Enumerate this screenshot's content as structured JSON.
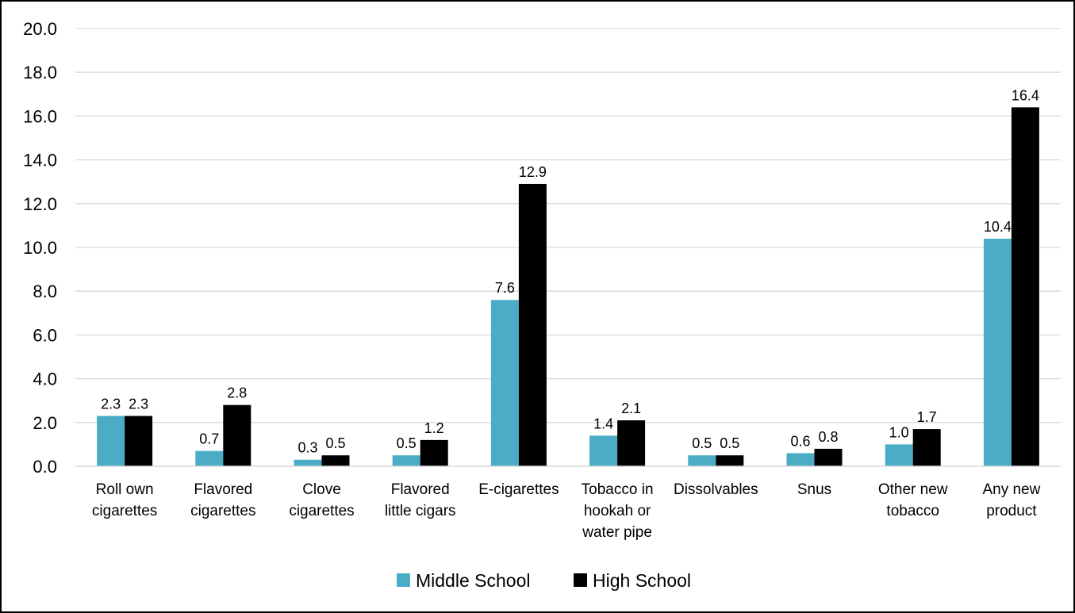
{
  "chart_data": {
    "type": "bar",
    "title": "",
    "xlabel": "",
    "ylabel": "",
    "ylim": [
      0,
      20
    ],
    "ytick_step": 2,
    "ytick_labels": [
      "0.0",
      "2.0",
      "4.0",
      "6.0",
      "8.0",
      "10.0",
      "12.0",
      "14.0",
      "16.0",
      "18.0",
      "20.0"
    ],
    "grid": true,
    "legend_position": "bottom",
    "categories": [
      [
        "Roll own",
        "cigarettes"
      ],
      [
        "Flavored",
        "cigarettes"
      ],
      [
        "Clove",
        "cigarettes"
      ],
      [
        "Flavored",
        "little cigars"
      ],
      [
        "E-cigarettes"
      ],
      [
        "Tobacco in",
        "hookah or",
        "water pipe"
      ],
      [
        "Dissolvables"
      ],
      [
        "Snus"
      ],
      [
        "Other new",
        "tobacco"
      ],
      [
        "Any new",
        "product"
      ]
    ],
    "series": [
      {
        "name": "Middle School",
        "color": "#4bacc6",
        "values": [
          2.3,
          0.7,
          0.3,
          0.5,
          7.6,
          1.4,
          0.5,
          0.6,
          1.0,
          10.4
        ],
        "labels": [
          "2.3",
          "0.7",
          "0.3",
          "0.5",
          "7.6",
          "1.4",
          "0.5",
          "0.6",
          "1.0",
          "10.4"
        ]
      },
      {
        "name": "High School",
        "color": "#000000",
        "values": [
          2.3,
          2.8,
          0.5,
          1.2,
          12.9,
          2.1,
          0.5,
          0.8,
          1.7,
          16.4
        ],
        "labels": [
          "2.3",
          "2.8",
          "0.5",
          "1.2",
          "12.9",
          "2.1",
          "0.5",
          "0.8",
          "1.7",
          "16.4"
        ]
      }
    ]
  }
}
